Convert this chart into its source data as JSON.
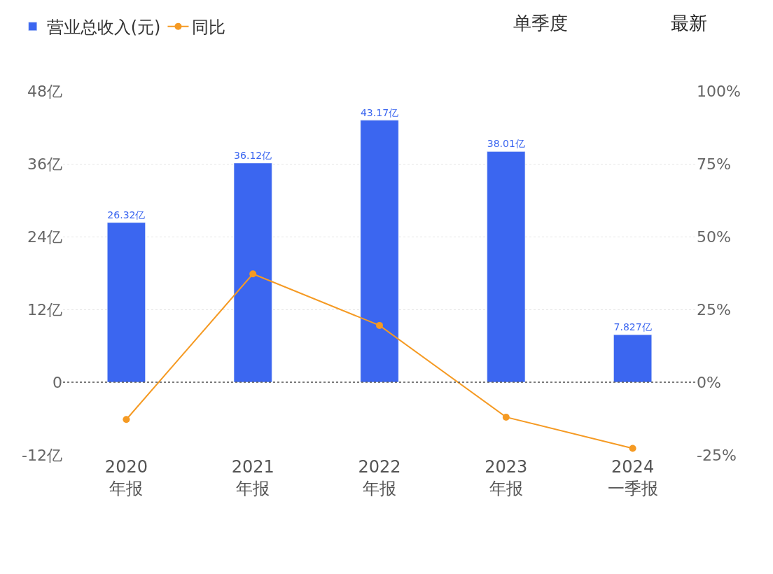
{
  "chart_data": {
    "type": "bar",
    "categories": [
      "2020\n年报",
      "2021\n年报",
      "2022\n年报",
      "2023\n年报",
      "2024\n一季报"
    ],
    "series": [
      {
        "name": "营业总收入(元)",
        "color": "#3b66f0",
        "values": [
          26.32,
          36.12,
          43.17,
          38.01,
          7.827
        ],
        "value_labels": [
          "26.32亿",
          "36.12亿",
          "43.17亿",
          "38.01亿",
          "7.827亿"
        ]
      },
      {
        "name": "同比",
        "type": "line",
        "axis": "y2",
        "color": "#f59a23",
        "marker": "circle",
        "values": [
          -12.8,
          37.2,
          19.5,
          -12.0,
          -22.7
        ]
      }
    ],
    "ylim": [
      -12,
      48
    ],
    "yticks": [
      {
        "value": -12,
        "label": "-12亿"
      },
      {
        "value": 0,
        "label": "0"
      },
      {
        "value": 12,
        "label": "12亿"
      },
      {
        "value": 24,
        "label": "24亿"
      },
      {
        "value": 36,
        "label": "36亿"
      },
      {
        "value": 48,
        "label": "48亿"
      }
    ],
    "y2lim": [
      -25,
      100
    ],
    "y2ticks": [
      {
        "value": -25,
        "label": "-25%"
      },
      {
        "value": 0,
        "label": "0%"
      },
      {
        "value": 25,
        "label": "25%"
      },
      {
        "value": 50,
        "label": "50%"
      },
      {
        "value": 75,
        "label": "75%"
      },
      {
        "value": 100,
        "label": "100%"
      }
    ],
    "ref_lines": [
      {
        "axis": "y",
        "value": 0,
        "color": "#555555",
        "line_style": "dotted"
      }
    ],
    "grid": "y",
    "legend": "top left",
    "annotations": [
      "单季度",
      "最新"
    ]
  }
}
